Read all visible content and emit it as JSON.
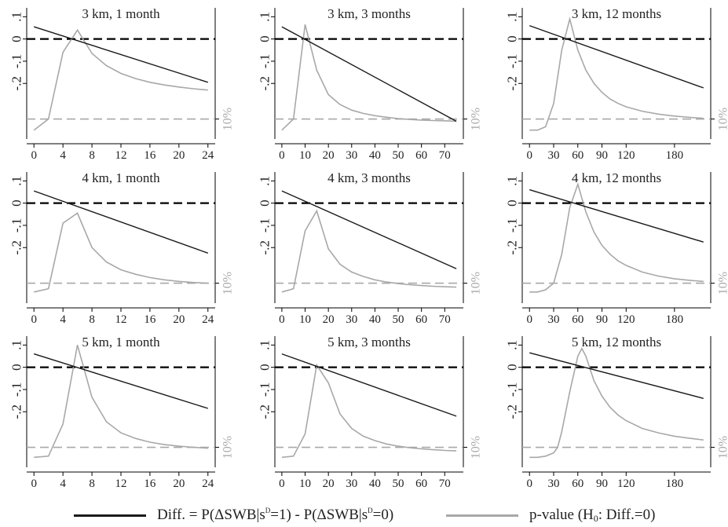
{
  "chart_data": {
    "type": "line",
    "layout": "3x3 small multiples",
    "y_tick_labels": [
      ".1",
      "0",
      "-.1",
      "-.2"
    ],
    "y_ticks": [
      0.1,
      0,
      -0.1,
      -0.2
    ],
    "ylim": [
      -0.45,
      0.14
    ],
    "threshold_label": "10%",
    "threshold_value": -0.36,
    "reference_line_value": 0,
    "legend": {
      "placement": "bottom",
      "diff_label": {
        "prefix": "Diff. = P(ΔSWB|s",
        "sup1": "D",
        "mid": "=1) - P(ΔSWB|s",
        "sup2": "D",
        "suffix": "=0)"
      },
      "pvalue_label": {
        "prefix": "p-value (H",
        "sub": "0",
        "suffix": ": Diff.=0)"
      }
    },
    "colors": {
      "diff": "#1a1a1a",
      "pvalue": "#a8a8a8",
      "reference": "#000000",
      "threshold": "#a8a8a8",
      "axis": "#000000"
    },
    "panels": [
      {
        "title": "3 km, 1 month",
        "xlim": [
          -1,
          25
        ],
        "x_ticks": [
          0,
          4,
          8,
          12,
          16,
          20,
          24
        ],
        "diff": {
          "x": [
            0,
            24
          ],
          "y": [
            0.055,
            -0.195
          ]
        },
        "pvalue": {
          "x": [
            0,
            2,
            4,
            6,
            8,
            10,
            12,
            14,
            16,
            18,
            20,
            22,
            24
          ],
          "y": [
            -0.41,
            -0.36,
            -0.06,
            0.04,
            -0.065,
            -0.12,
            -0.155,
            -0.178,
            -0.195,
            -0.207,
            -0.216,
            -0.224,
            -0.23
          ]
        }
      },
      {
        "title": "3 km, 3 months",
        "xlim": [
          -3,
          78
        ],
        "x_ticks": [
          0,
          10,
          20,
          30,
          40,
          50,
          60,
          70
        ],
        "diff": {
          "x": [
            0,
            75
          ],
          "y": [
            0.055,
            -0.37
          ]
        },
        "pvalue": {
          "x": [
            0,
            5,
            10,
            15,
            20,
            25,
            30,
            35,
            40,
            45,
            50,
            55,
            60,
            65,
            70,
            75
          ],
          "y": [
            -0.41,
            -0.36,
            0.065,
            -0.14,
            -0.25,
            -0.295,
            -0.32,
            -0.335,
            -0.345,
            -0.352,
            -0.358,
            -0.362,
            -0.365,
            -0.367,
            -0.368,
            -0.37
          ]
        }
      },
      {
        "title": "3 km, 12 months",
        "xlim": [
          -9,
          225
        ],
        "x_ticks": [
          0,
          30,
          60,
          90,
          120,
          180
        ],
        "diff": {
          "x": [
            0,
            216
          ],
          "y": [
            0.06,
            -0.22
          ]
        },
        "pvalue": {
          "x": [
            0,
            10,
            20,
            30,
            40,
            50,
            60,
            70,
            80,
            90,
            100,
            110,
            120,
            140,
            160,
            180,
            200,
            216
          ],
          "y": [
            -0.41,
            -0.41,
            -0.395,
            -0.29,
            -0.05,
            0.09,
            -0.05,
            -0.14,
            -0.2,
            -0.24,
            -0.27,
            -0.29,
            -0.305,
            -0.325,
            -0.338,
            -0.347,
            -0.353,
            -0.357
          ]
        }
      },
      {
        "title": "4 km, 1 month",
        "xlim": [
          -1,
          25
        ],
        "x_ticks": [
          0,
          4,
          8,
          12,
          16,
          20,
          24
        ],
        "diff": {
          "x": [
            0,
            24
          ],
          "y": [
            0.055,
            -0.225
          ]
        },
        "pvalue": {
          "x": [
            0,
            2,
            4,
            6,
            8,
            10,
            12,
            14,
            16,
            18,
            20,
            22,
            24
          ],
          "y": [
            -0.4,
            -0.385,
            -0.09,
            -0.045,
            -0.2,
            -0.265,
            -0.3,
            -0.32,
            -0.335,
            -0.345,
            -0.352,
            -0.357,
            -0.36
          ]
        }
      },
      {
        "title": "4 km, 3 months",
        "xlim": [
          -3,
          78
        ],
        "x_ticks": [
          0,
          10,
          20,
          30,
          40,
          50,
          60,
          70
        ],
        "diff": {
          "x": [
            0,
            75
          ],
          "y": [
            0.055,
            -0.295
          ]
        },
        "pvalue": {
          "x": [
            0,
            5,
            10,
            15,
            20,
            25,
            30,
            35,
            40,
            45,
            50,
            55,
            60,
            65,
            70,
            75
          ],
          "y": [
            -0.4,
            -0.385,
            -0.125,
            -0.035,
            -0.205,
            -0.275,
            -0.31,
            -0.33,
            -0.345,
            -0.355,
            -0.362,
            -0.367,
            -0.371,
            -0.374,
            -0.376,
            -0.378
          ]
        }
      },
      {
        "title": "4 km, 12 months",
        "xlim": [
          -9,
          225
        ],
        "x_ticks": [
          0,
          30,
          60,
          90,
          120,
          180
        ],
        "diff": {
          "x": [
            0,
            216
          ],
          "y": [
            0.06,
            -0.175
          ]
        },
        "pvalue": {
          "x": [
            0,
            10,
            20,
            30,
            40,
            50,
            60,
            70,
            80,
            90,
            100,
            110,
            120,
            140,
            160,
            180,
            200,
            216
          ],
          "y": [
            -0.4,
            -0.4,
            -0.39,
            -0.36,
            -0.23,
            -0.02,
            0.085,
            -0.04,
            -0.13,
            -0.19,
            -0.23,
            -0.26,
            -0.28,
            -0.31,
            -0.328,
            -0.34,
            -0.348,
            -0.352
          ]
        }
      },
      {
        "title": "5 km, 1 month",
        "xlim": [
          -1,
          25
        ],
        "x_ticks": [
          0,
          4,
          8,
          12,
          16,
          20,
          24
        ],
        "diff": {
          "x": [
            0,
            24
          ],
          "y": [
            0.06,
            -0.185
          ]
        },
        "pvalue": {
          "x": [
            0,
            2,
            4,
            6,
            8,
            10,
            12,
            14,
            16,
            18,
            20,
            22,
            24
          ],
          "y": [
            -0.405,
            -0.4,
            -0.255,
            0.1,
            -0.135,
            -0.245,
            -0.295,
            -0.32,
            -0.337,
            -0.348,
            -0.355,
            -0.36,
            -0.364
          ]
        }
      },
      {
        "title": "5 km, 3 months",
        "xlim": [
          -3,
          78
        ],
        "x_ticks": [
          0,
          10,
          20,
          30,
          40,
          50,
          60,
          70
        ],
        "diff": {
          "x": [
            0,
            75
          ],
          "y": [
            0.06,
            -0.22
          ]
        },
        "pvalue": {
          "x": [
            0,
            5,
            10,
            15,
            20,
            25,
            30,
            35,
            40,
            45,
            50,
            55,
            60,
            65,
            70,
            75
          ],
          "y": [
            -0.405,
            -0.4,
            -0.3,
            0.01,
            -0.07,
            -0.21,
            -0.275,
            -0.31,
            -0.33,
            -0.345,
            -0.355,
            -0.362,
            -0.367,
            -0.371,
            -0.374,
            -0.376
          ]
        }
      },
      {
        "title": "5 km, 12 months",
        "xlim": [
          -9,
          225
        ],
        "x_ticks": [
          0,
          30,
          60,
          90,
          120,
          180
        ],
        "diff": {
          "x": [
            0,
            216
          ],
          "y": [
            0.065,
            -0.14
          ]
        },
        "pvalue": {
          "x": [
            0,
            10,
            20,
            30,
            35,
            40,
            50,
            60,
            65,
            70,
            80,
            90,
            100,
            110,
            120,
            140,
            160,
            180,
            200,
            216
          ],
          "y": [
            -0.405,
            -0.405,
            -0.4,
            -0.385,
            -0.36,
            -0.29,
            -0.11,
            0.05,
            0.085,
            0.05,
            -0.06,
            -0.13,
            -0.18,
            -0.215,
            -0.24,
            -0.275,
            -0.295,
            -0.31,
            -0.32,
            -0.327
          ]
        }
      }
    ]
  }
}
